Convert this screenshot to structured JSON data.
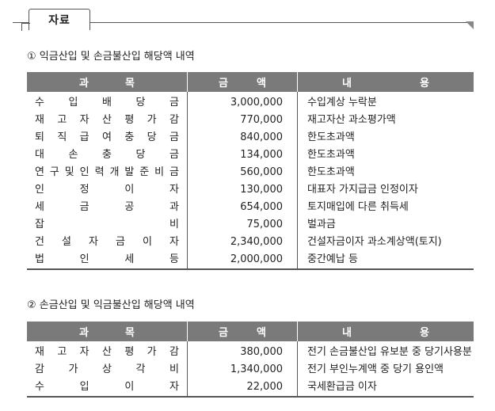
{
  "header": {
    "tab_label": "자료"
  },
  "sections": [
    {
      "title": "① 익금산입 및 손금불산입 해당액 내역",
      "columns": [
        "과목",
        "금액",
        "내용"
      ],
      "rows": [
        {
          "subject": "수입배당금",
          "amount": "3,000,000",
          "desc": "수입계상 누락분"
        },
        {
          "subject": "재고자산평가감",
          "amount": "770,000",
          "desc": "재고자산 과소평가액"
        },
        {
          "subject": "퇴직급여충당금",
          "amount": "840,000",
          "desc": "한도초과액"
        },
        {
          "subject": "대손충당금",
          "amount": "134,000",
          "desc": "한도초과액"
        },
        {
          "subject": "연구및인력개발준비금",
          "amount": "560,000",
          "desc": "한도초과액"
        },
        {
          "subject": "인정이자",
          "amount": "130,000",
          "desc": "대표자 가지급금 인정이자"
        },
        {
          "subject": "세금공과",
          "amount": "654,000",
          "desc": "토지매입에 다른 취득세"
        },
        {
          "subject": "잡비",
          "amount": "75,000",
          "desc": "벌과금"
        },
        {
          "subject": "건설자금이자",
          "amount": "2,340,000",
          "desc": "건설자금이자 과소계상액(토지)"
        },
        {
          "subject": "법인세등",
          "amount": "2,000,000",
          "desc": "중간예납 등"
        }
      ]
    },
    {
      "title": "② 손금산입 및 익금불산입 해당액 내역",
      "columns": [
        "과목",
        "금액",
        "내용"
      ],
      "rows": [
        {
          "subject": "재고자산평가감",
          "amount": "380,000",
          "desc": "전기 손금불산입 유보분 중 당기사용분"
        },
        {
          "subject": "감가상각비",
          "amount": "1,340,000",
          "desc": "전기 부인누계액 중 당기 용인액"
        },
        {
          "subject": "수입이자",
          "amount": "22,000",
          "desc": "국세환급금 이자"
        }
      ]
    }
  ]
}
